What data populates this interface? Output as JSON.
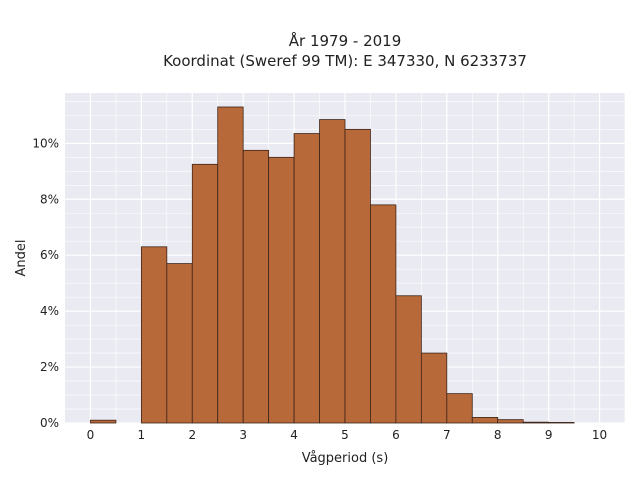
{
  "chart_data": {
    "type": "bar",
    "title_line1": "År 1979 - 2019",
    "title_line2": "Koordinat (Sweref 99 TM): E 347330, N 6233737",
    "xlabel": "Vågperiod (s)",
    "ylabel": "Andel",
    "xlim": [
      -0.5,
      10.5
    ],
    "ylim": [
      0,
      11.8
    ],
    "x_ticks": [
      "0",
      "1",
      "2",
      "3",
      "4",
      "5",
      "6",
      "7",
      "8",
      "9",
      "10"
    ],
    "y_ticks": [
      "0%",
      "2%",
      "4%",
      "6%",
      "8%",
      "10%"
    ],
    "bin_width": 0.5,
    "bins": [
      {
        "start": 0.0,
        "value": 0.1
      },
      {
        "start": 0.5,
        "value": 0.0
      },
      {
        "start": 1.0,
        "value": 6.3
      },
      {
        "start": 1.5,
        "value": 5.7
      },
      {
        "start": 2.0,
        "value": 9.25
      },
      {
        "start": 2.5,
        "value": 11.3
      },
      {
        "start": 3.0,
        "value": 9.75
      },
      {
        "start": 3.5,
        "value": 9.5
      },
      {
        "start": 4.0,
        "value": 10.35
      },
      {
        "start": 4.5,
        "value": 10.85
      },
      {
        "start": 5.0,
        "value": 10.5
      },
      {
        "start": 5.5,
        "value": 7.8
      },
      {
        "start": 6.0,
        "value": 4.55
      },
      {
        "start": 6.5,
        "value": 2.5
      },
      {
        "start": 7.0,
        "value": 1.05
      },
      {
        "start": 7.5,
        "value": 0.2
      },
      {
        "start": 8.0,
        "value": 0.12
      },
      {
        "start": 8.5,
        "value": 0.03
      },
      {
        "start": 9.0,
        "value": 0.02
      }
    ],
    "grid": true,
    "colors": {
      "bar_fill": "#b8693a",
      "bar_edge": "#3d2418",
      "plot_bg": "#eaeaf2",
      "grid": "#ffffff"
    }
  }
}
